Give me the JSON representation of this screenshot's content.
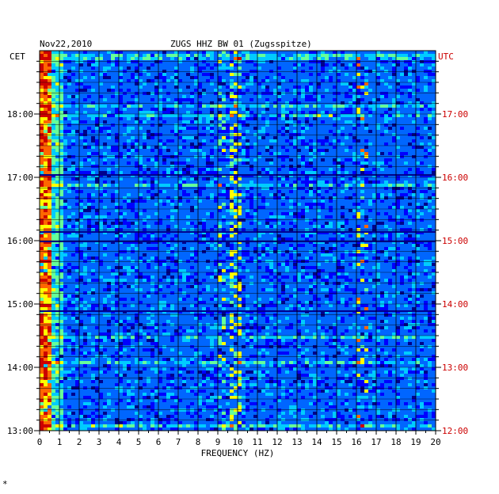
{
  "header": {
    "date": "Nov22,2010",
    "station": "ZUGS HHZ BW 01 (Zugsspitze)",
    "left_tz": "CET",
    "right_tz": "UTC",
    "corner_mark": "*"
  },
  "chart_data": {
    "type": "heatmap",
    "title": "ZUGS HHZ BW 01 (Zugsspitze)",
    "subtitle": "Nov22,2010",
    "xlabel": "FREQUENCY (HZ)",
    "xlim": [
      0,
      20
    ],
    "x_ticks": [
      "0",
      "1",
      "2",
      "3",
      "4",
      "5",
      "6",
      "7",
      "8",
      "9",
      "10",
      "11",
      "12",
      "13",
      "14",
      "15",
      "16",
      "17",
      "18",
      "19",
      "20"
    ],
    "y_left_label": "CET",
    "y_right_label": "UTC",
    "y_left_ticks": [
      "13:00",
      "14:00",
      "15:00",
      "16:00",
      "17:00",
      "18:00"
    ],
    "y_right_ticks": [
      "12:00",
      "13:00",
      "14:00",
      "15:00",
      "16:00",
      "17:00"
    ],
    "time_range_cet": [
      "13:00",
      "19:00"
    ],
    "grid": true,
    "colormap": [
      "#00008b",
      "#0000ff",
      "#0066ff",
      "#00ccff",
      "#66ff99",
      "#ffff00",
      "#ff6600",
      "#cc0000"
    ]
  }
}
